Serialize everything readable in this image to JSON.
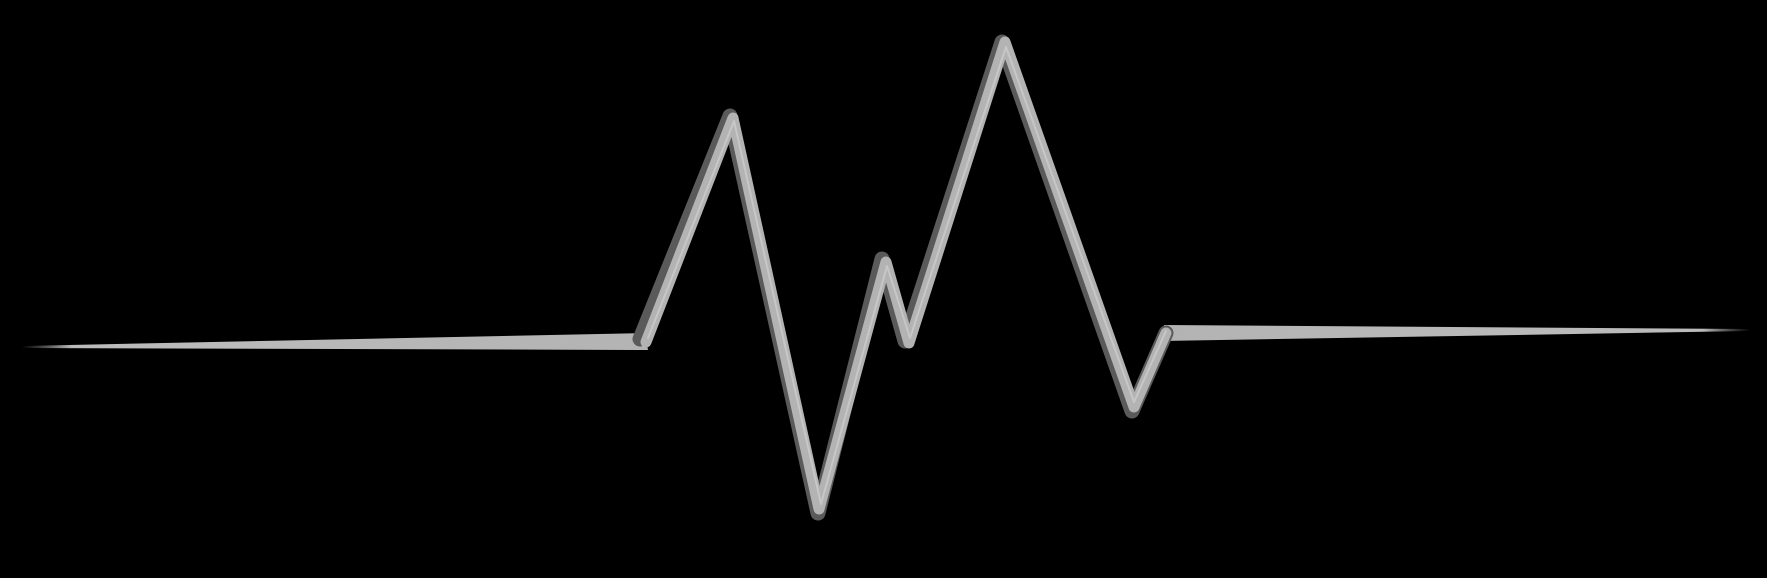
{
  "colors": {
    "background": "#000000",
    "line": "#b3b3b3",
    "line_shadow": "#5a5a5a",
    "line_highlight": "#e6e6e6"
  },
  "graphic": {
    "icon": "heartbeat-line-icon"
  }
}
